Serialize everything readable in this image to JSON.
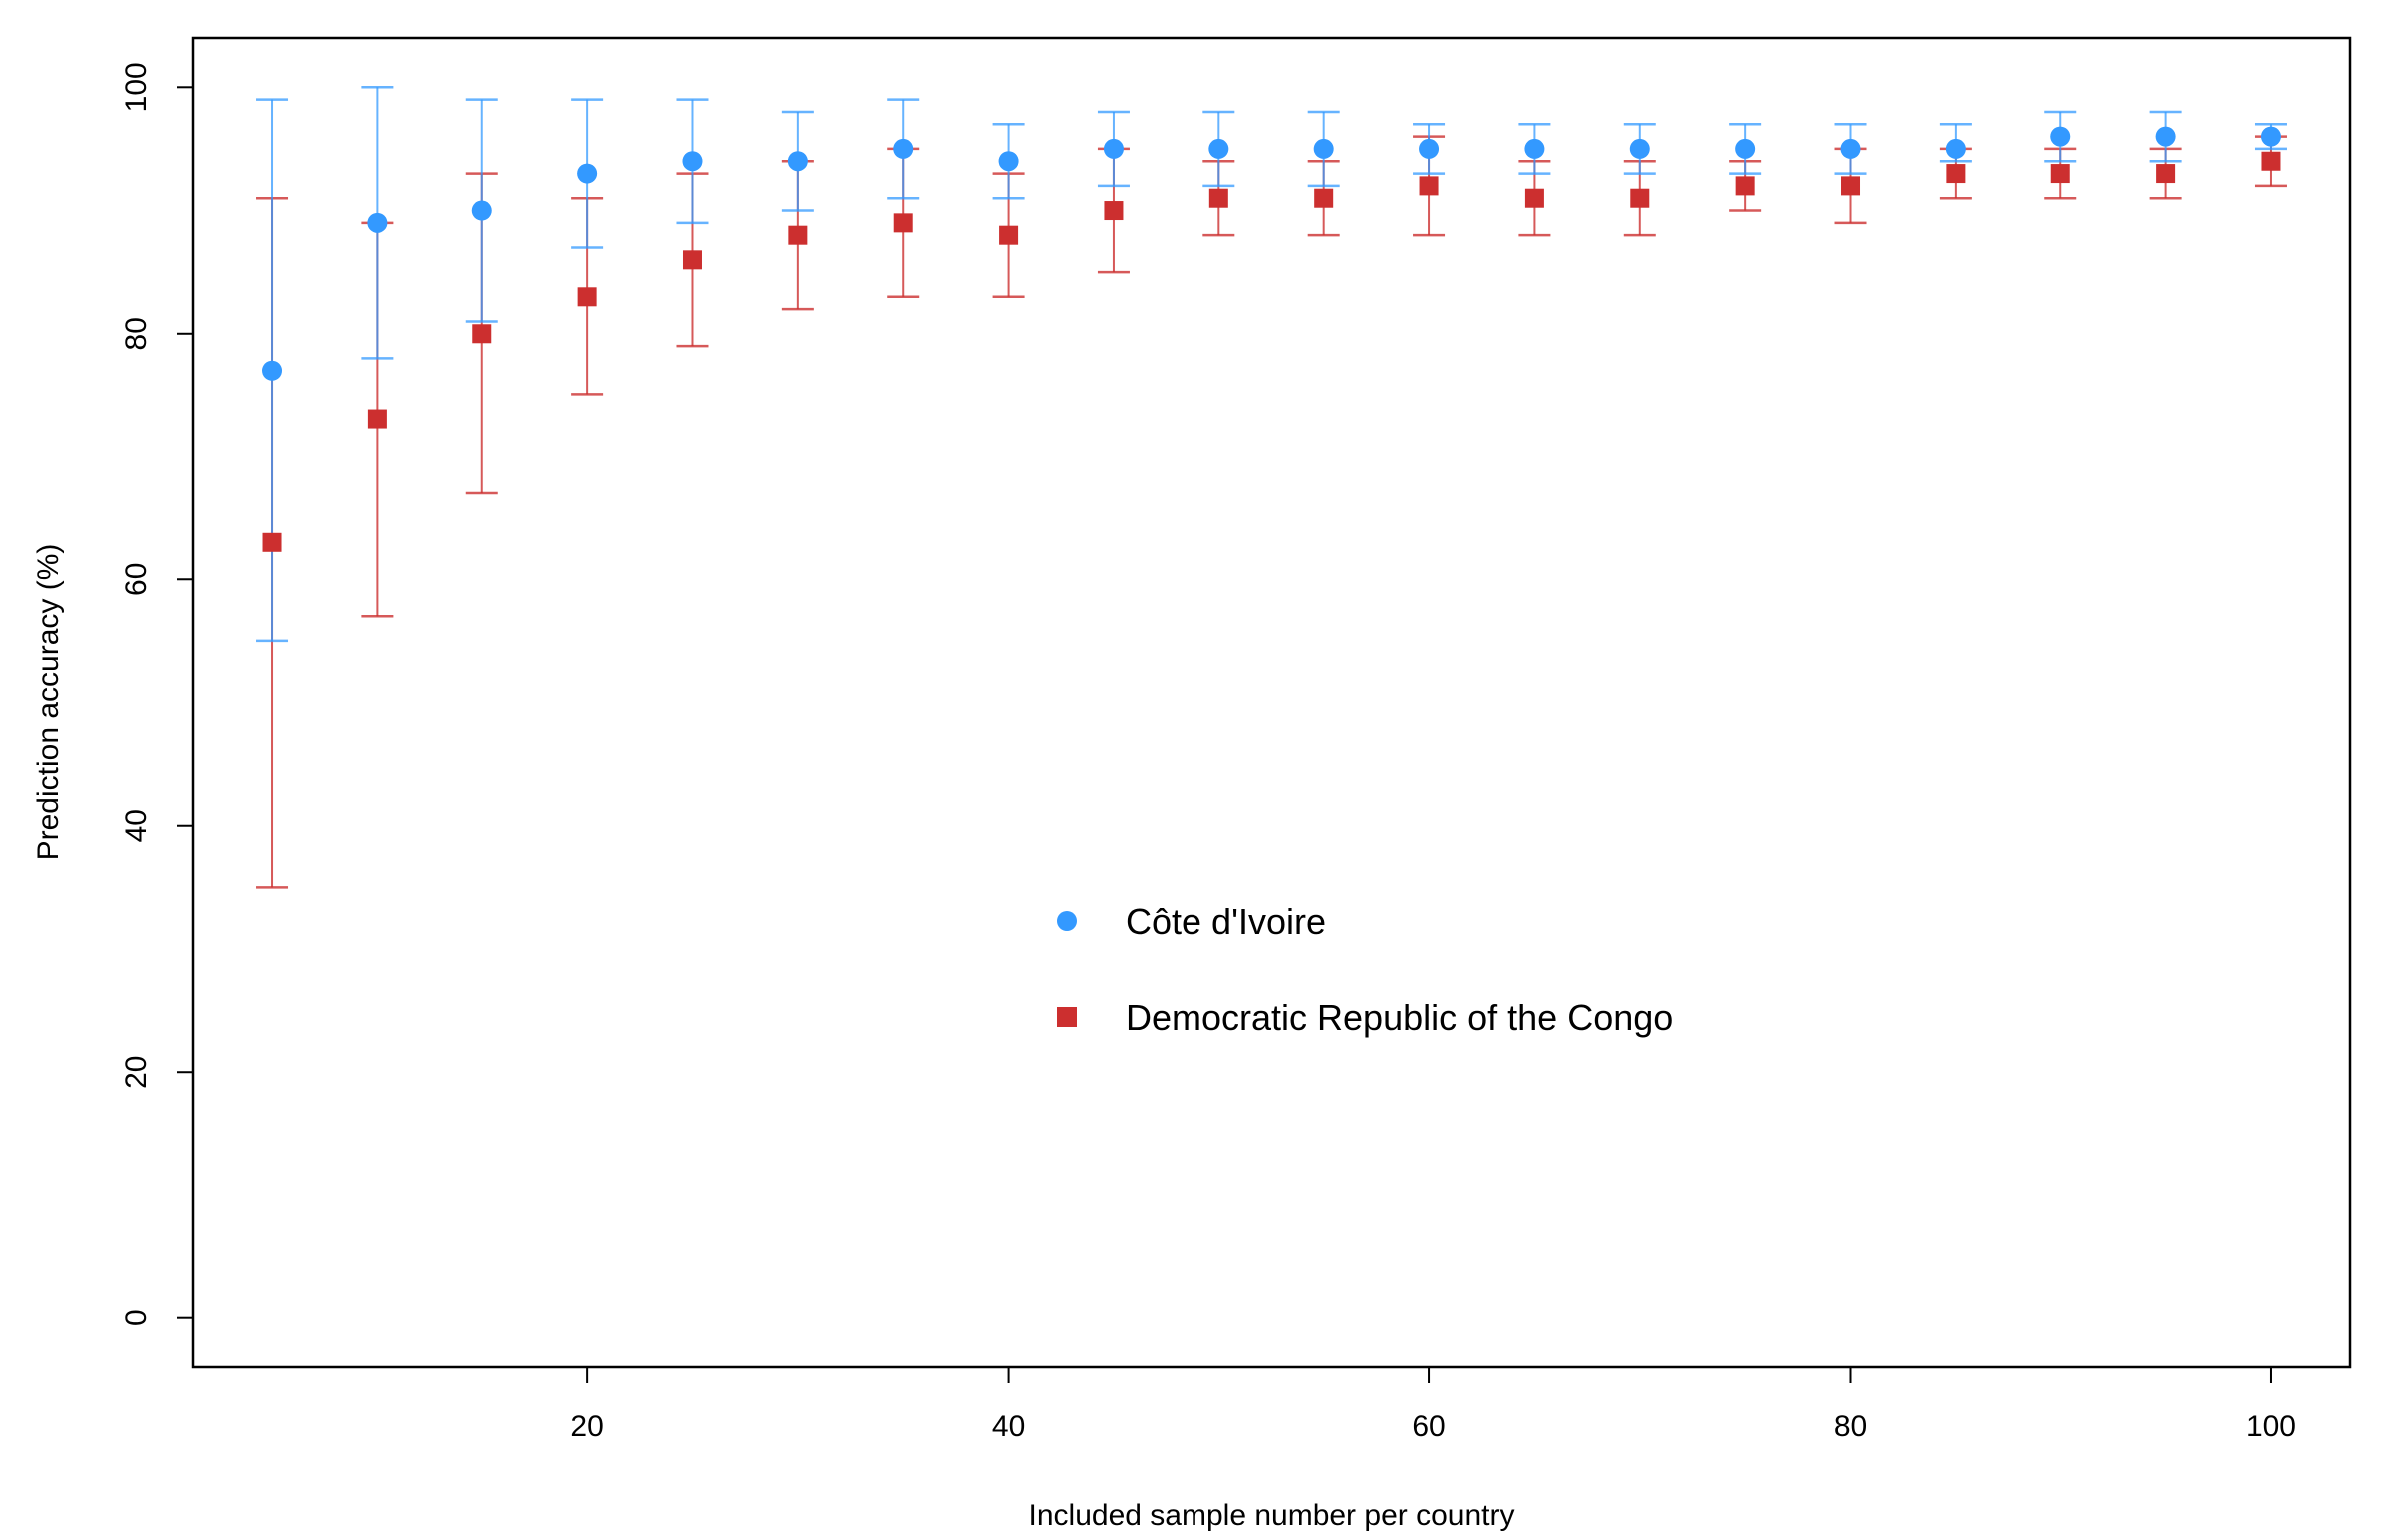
{
  "chart_data": {
    "type": "scatter",
    "title": "",
    "xlabel": "Included sample number per country",
    "ylabel": "Prediction accuracy (%)",
    "xlim": [
      1.25,
      103.75
    ],
    "ylim": [
      -4,
      104
    ],
    "xticks": [
      20,
      40,
      60,
      80,
      100
    ],
    "yticks": [
      0,
      20,
      40,
      60,
      80,
      100
    ],
    "grid": false,
    "legend_position": "center",
    "x": [
      5,
      10,
      15,
      20,
      25,
      30,
      35,
      40,
      45,
      50,
      55,
      60,
      65,
      70,
      75,
      80,
      85,
      90,
      95,
      100
    ],
    "series": [
      {
        "name": "Côte d'Ivoire",
        "color": "#3399ff",
        "marker": "circle",
        "values": [
          77,
          89,
          90,
          93,
          94,
          94,
          95,
          94,
          95,
          95,
          95,
          95,
          95,
          95,
          95,
          95,
          95,
          96,
          96,
          96
        ],
        "lower": [
          55,
          78,
          81,
          87,
          89,
          90,
          91,
          91,
          92,
          92,
          92,
          93,
          93,
          93,
          93,
          93,
          94,
          94,
          94,
          95
        ],
        "upper": [
          99,
          100,
          99,
          99,
          99,
          98,
          99,
          97,
          98,
          98,
          98,
          97,
          97,
          97,
          97,
          97,
          97,
          98,
          98,
          97
        ]
      },
      {
        "name": "Democratic Republic of the Congo",
        "color": "#cc2f2f",
        "marker": "square",
        "values": [
          63,
          73,
          80,
          83,
          86,
          88,
          89,
          88,
          90,
          91,
          91,
          92,
          91,
          91,
          92,
          92,
          93,
          93,
          93,
          94
        ],
        "lower": [
          35,
          57,
          67,
          75,
          79,
          82,
          83,
          83,
          85,
          88,
          88,
          88,
          88,
          88,
          90,
          89,
          91,
          91,
          91,
          92
        ],
        "upper": [
          91,
          89,
          93,
          91,
          93,
          94,
          95,
          93,
          95,
          94,
          94,
          96,
          94,
          94,
          94,
          95,
          95,
          95,
          95,
          96
        ]
      }
    ]
  }
}
